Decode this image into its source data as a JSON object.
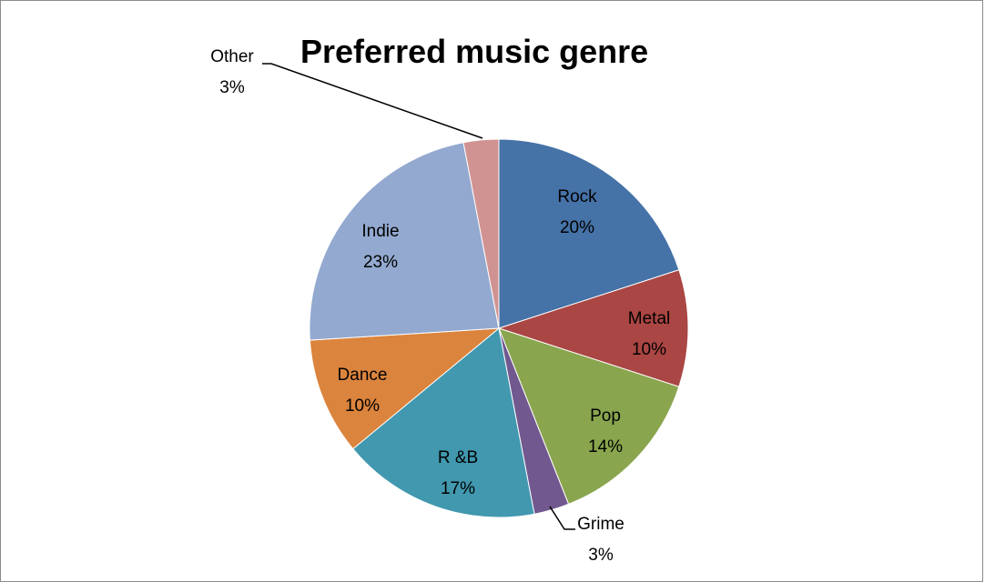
{
  "chart_data": {
    "type": "pie",
    "title": "Preferred music genre",
    "slices": [
      {
        "label": "Rock",
        "value": 20,
        "value_text": "20%",
        "color": "#4572A7"
      },
      {
        "label": "Metal",
        "value": 10,
        "value_text": "10%",
        "color": "#AA4643"
      },
      {
        "label": "Pop",
        "value": 14,
        "value_text": "14%",
        "color": "#89A54E"
      },
      {
        "label": "Grime",
        "value": 3,
        "value_text": "3%",
        "color": "#71588F"
      },
      {
        "label": "R &B",
        "value": 17,
        "value_text": "17%",
        "color": "#4198AF"
      },
      {
        "label": "Dance",
        "value": 10,
        "value_text": "10%",
        "color": "#DB843D"
      },
      {
        "label": "Indie",
        "value": 23,
        "value_text": "23%",
        "color": "#93A9CF"
      },
      {
        "label": "Other",
        "value": 3,
        "value_text": "3%",
        "color": "#D19392"
      }
    ]
  }
}
